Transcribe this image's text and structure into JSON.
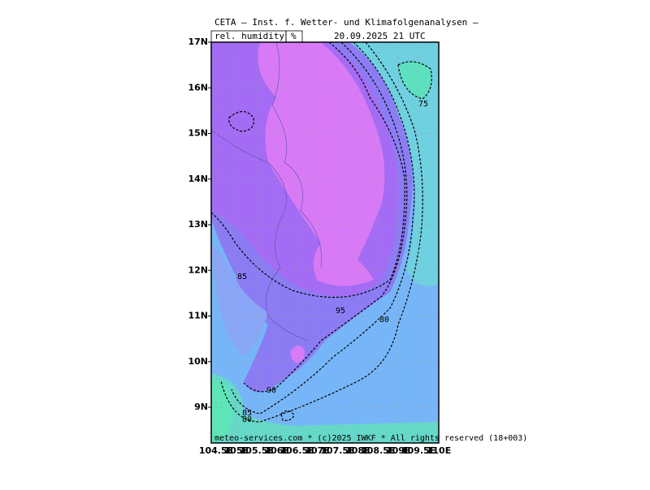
{
  "header": {
    "title": "CETA — Inst. f. Wetter- und Klimafolgenanalysen —",
    "variable": "rel. humidity",
    "unit": "%",
    "valid_time": "20.09.2025 21 UTC"
  },
  "map": {
    "lat_labels": [
      "17N",
      "16N",
      "15N",
      "14N",
      "13N",
      "12N",
      "11N",
      "10N",
      "9N"
    ],
    "lon_labels": [
      "104.5E",
      "105E",
      "105.5E",
      "106E",
      "106.5E",
      "107E",
      "107.5E",
      "108E",
      "108.5E",
      "109E",
      "109.5E",
      "110E"
    ],
    "contour_labels": [
      "75",
      "85",
      "95",
      "80",
      "90",
      "85",
      "80"
    ]
  },
  "footer": "meteo-services.com * (c)2025 IWKF * All rights reserved (18+003)"
}
